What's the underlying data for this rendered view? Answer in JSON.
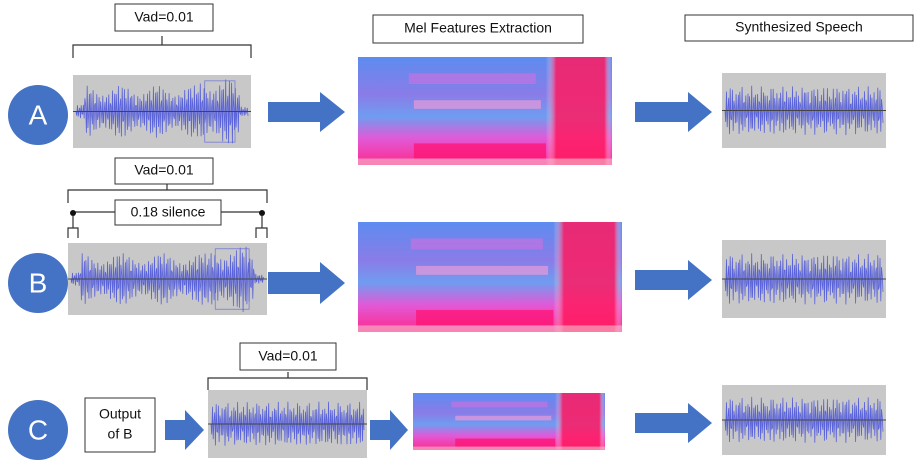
{
  "header": {
    "mel_label": "Mel Features Extraction",
    "synth_label": "Synthesized Speech"
  },
  "rows": [
    {
      "label": "A",
      "vad": "Vad=0.01"
    },
    {
      "label": "B",
      "vad": "Vad=0.01",
      "silence": "0.18 silence"
    },
    {
      "label": "C",
      "vad": "Vad=0.01",
      "input": [
        "Output",
        "of B"
      ]
    }
  ]
}
